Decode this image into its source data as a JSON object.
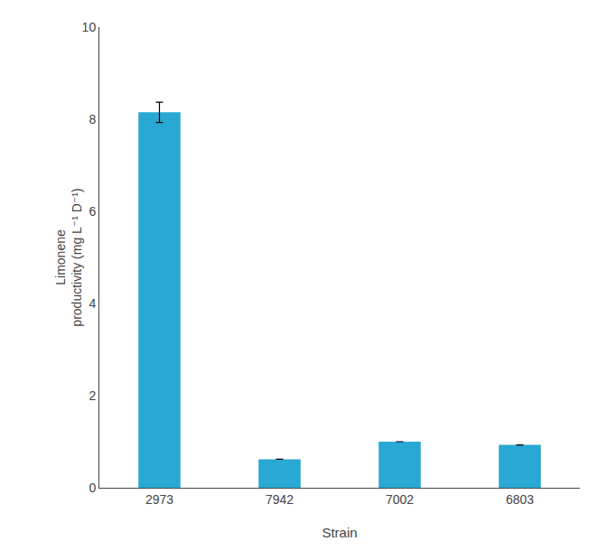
{
  "chart_data": {
    "type": "bar",
    "categories": [
      "2973",
      "7942",
      "7002",
      "6803"
    ],
    "values": [
      8.15,
      0.62,
      1.0,
      0.93
    ],
    "errors": [
      0.22,
      0.0,
      0.0,
      0.0
    ],
    "color": "#29A8D4",
    "xlabel": "Strain",
    "ylabel": "Limonene\nproductivity (mg L⁻¹ D⁻¹)",
    "ylim": [
      0,
      10
    ],
    "yticks": [
      0,
      2,
      4,
      6,
      8,
      10
    ],
    "grid": false
  }
}
